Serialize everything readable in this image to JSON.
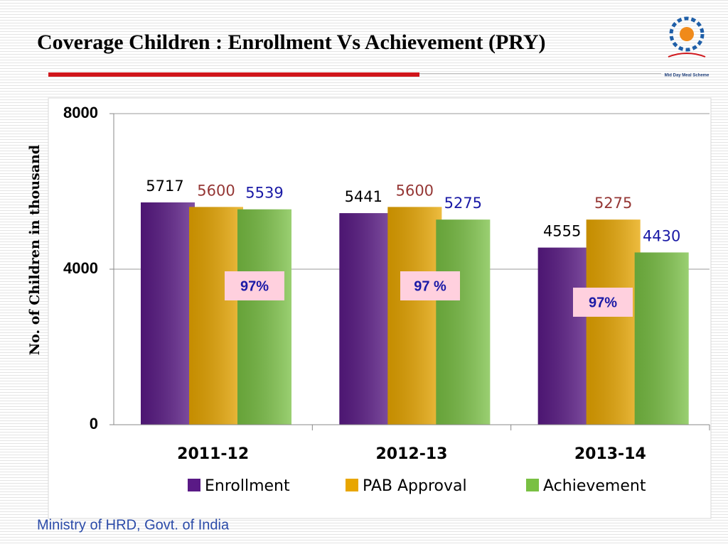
{
  "chart_data": {
    "type": "bar",
    "title": "Coverage Children : Enrollment Vs Achievement (PRY)",
    "ylabel": "No. of Children in thousand",
    "categories": [
      "2011-12",
      "2012-13",
      "2013-14"
    ],
    "series": [
      {
        "name": "Enrollment",
        "color": "#5a1a86",
        "label_color": "#000000",
        "values": [
          5717,
          5441,
          4555
        ]
      },
      {
        "name": "PAB Approval",
        "color": "#e8a600",
        "label_color": "#953735",
        "values": [
          5600,
          5600,
          5275
        ]
      },
      {
        "name": "Achievement",
        "color": "#79c043",
        "label_color": "#1a1aa6",
        "values": [
          5539,
          5275,
          4430
        ]
      }
    ],
    "annotations": [
      "97%",
      "97 %",
      "97%"
    ],
    "ylim": [
      0,
      8000
    ],
    "yticks": [
      0,
      4000,
      8000
    ],
    "grid": true,
    "legend": "bottom",
    "footer": "Ministry of HRD, Govt. of India",
    "logo_text": "Mid Day Meal Scheme"
  }
}
